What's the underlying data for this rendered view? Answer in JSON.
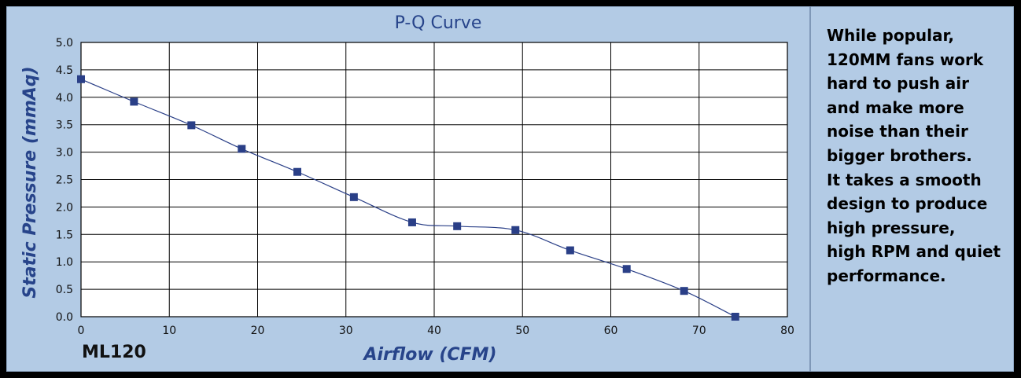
{
  "model": "ML120",
  "description": "While popular,\n120MM fans work\nhard to push air\nand make more\nnoise than their\nbigger brothers.\nIt takes a smooth\ndesign to produce\nhigh pressure,\nhigh RPM and quiet\nperformance.",
  "colors": {
    "background": "#b3cbe5",
    "plot_area": "#ffffff",
    "series": "#2a3f87",
    "axis_title": "#27448a",
    "divider": "#7f98b7"
  },
  "chart_data": {
    "type": "line",
    "title": "P-Q Curve",
    "xlabel": "Airflow (CFM)",
    "ylabel": "Static Pressure (mmAq)",
    "xlim": [
      0,
      80
    ],
    "ylim": [
      0,
      5
    ],
    "xticks": [
      0,
      10,
      20,
      30,
      40,
      50,
      60,
      70,
      80
    ],
    "yticks": [
      0.0,
      0.5,
      1.0,
      1.5,
      2.0,
      2.5,
      3.0,
      3.5,
      4.0,
      4.5,
      5.0
    ],
    "ytick_labels": [
      "0.0",
      "0.5",
      "1.0",
      "1.5",
      "2.0",
      "2.5",
      "3.0",
      "3.5",
      "4.0",
      "4.5",
      "5.0"
    ],
    "xtick_labels": [
      "0",
      "10",
      "20",
      "30",
      "40",
      "50",
      "60",
      "70",
      "80"
    ],
    "grid": true,
    "series": [
      {
        "name": "ML120",
        "marker": "square",
        "x": [
          0,
          6,
          12.5,
          18.2,
          24.5,
          30.9,
          37.5,
          42.6,
          49.2,
          55.4,
          61.8,
          68.3,
          74.1
        ],
        "y": [
          4.33,
          3.92,
          3.49,
          3.06,
          2.64,
          2.18,
          1.72,
          1.65,
          1.58,
          1.21,
          0.87,
          0.47,
          0.0
        ]
      }
    ]
  }
}
